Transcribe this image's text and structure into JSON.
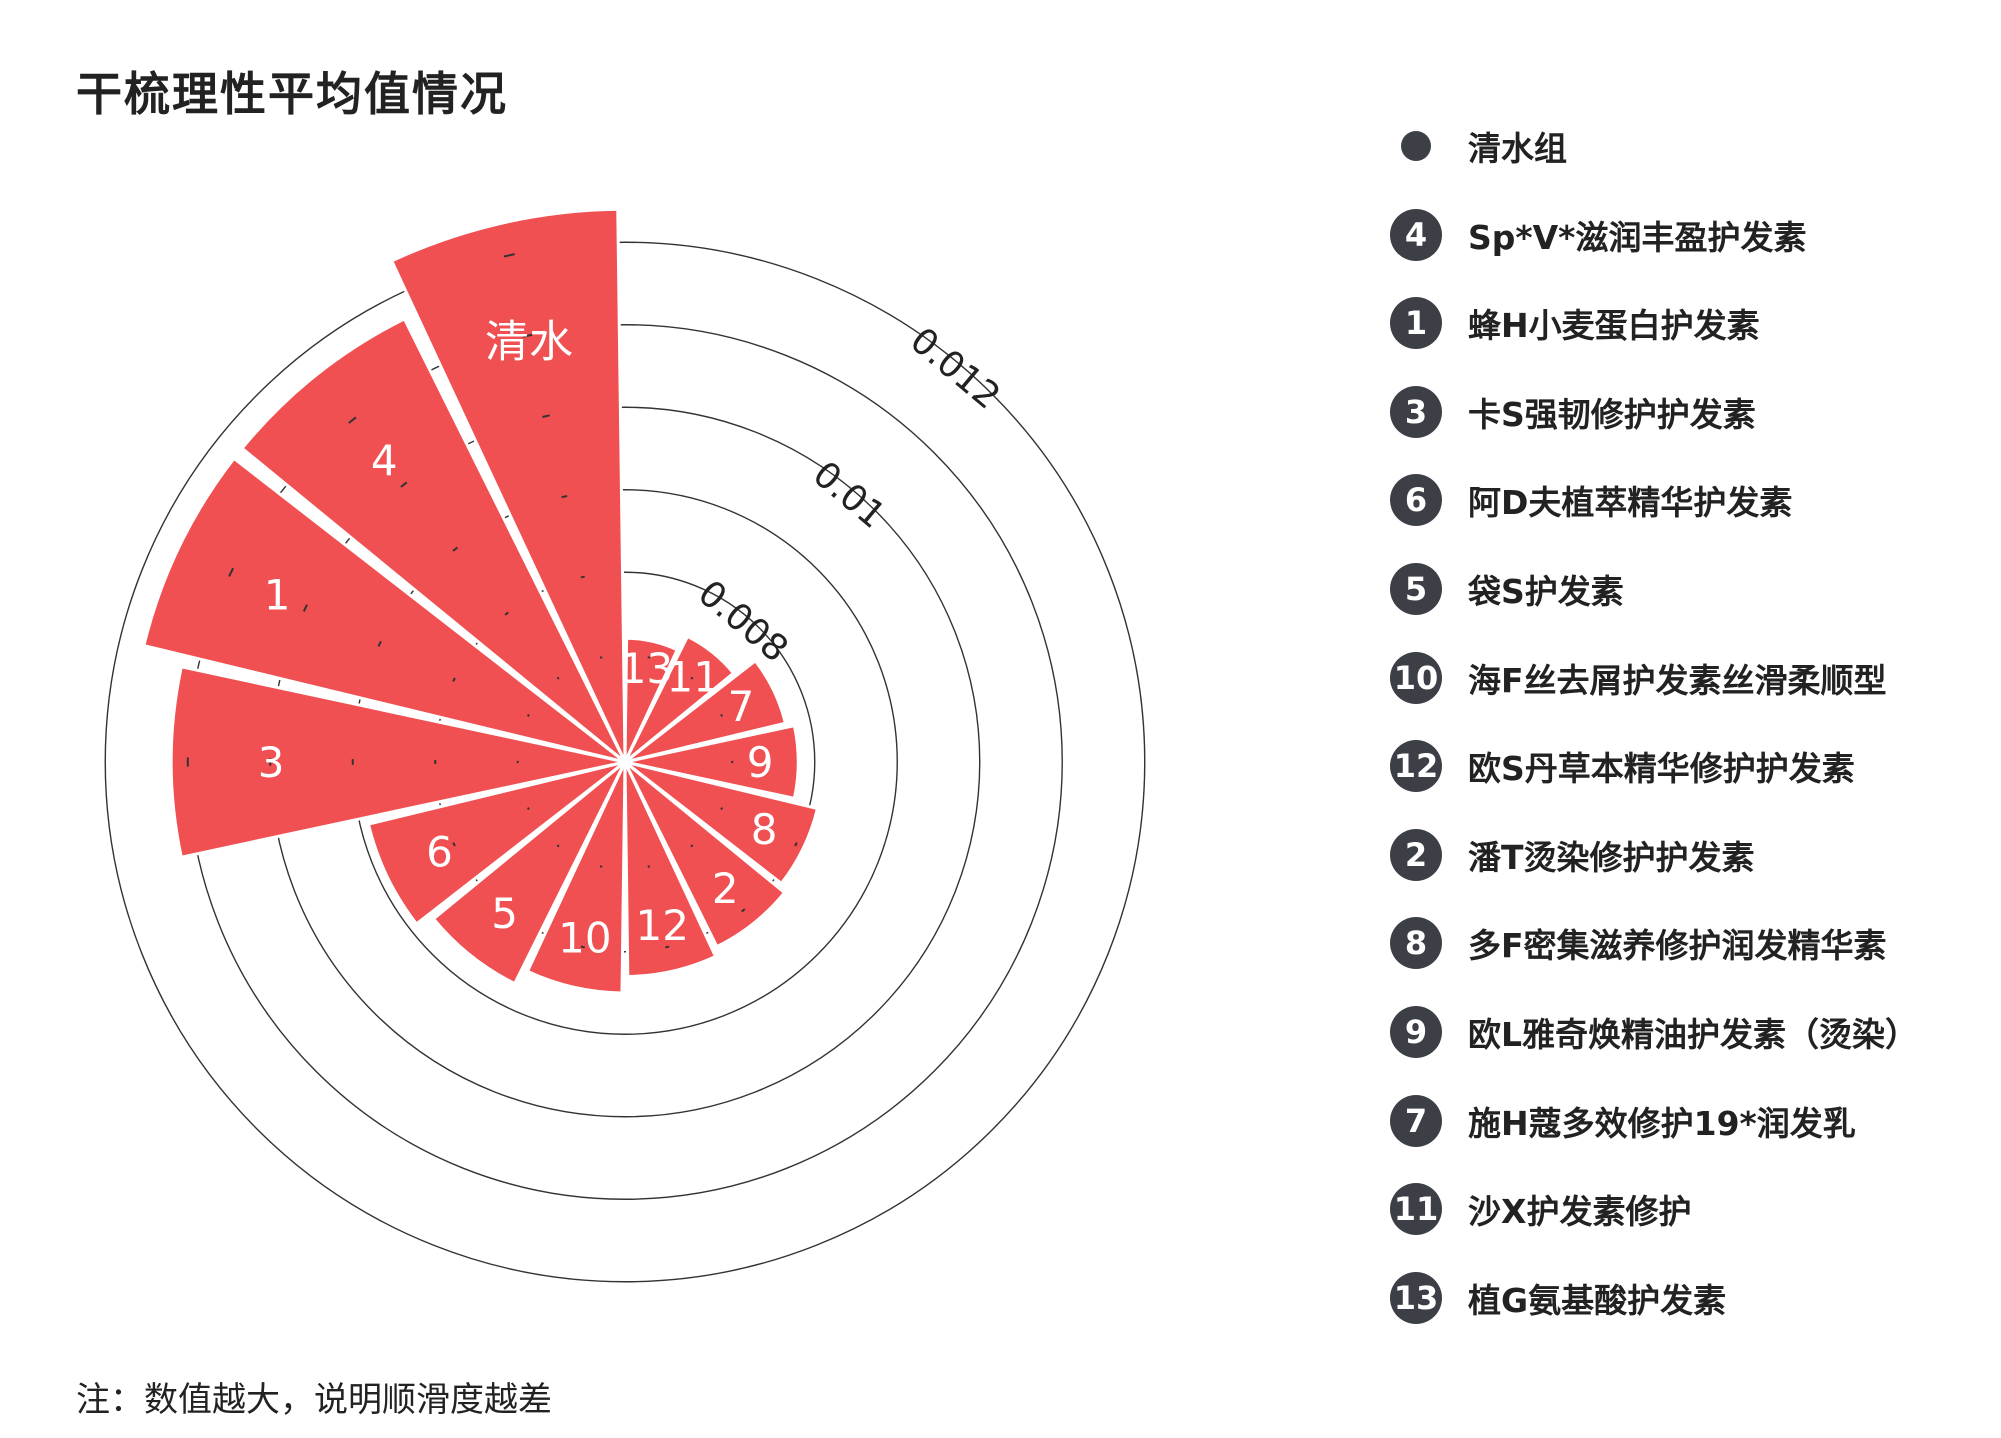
{
  "title": "干梳理性平均值情况",
  "footnote": "注：数值越大，说明顺滑度越差",
  "chart_data": {
    "type": "polar-bar",
    "title": "干梳理性平均值情况",
    "radial_ticks": [
      "0.008",
      "0.01",
      "0.012"
    ],
    "radial_tick_values": [
      0.008,
      0.01,
      0.012
    ],
    "bar_color": "#f05052",
    "categories": [
      "清水",
      "4",
      "1",
      "3",
      "6",
      "5",
      "10",
      "12",
      "2",
      "8",
      "9",
      "7",
      "11",
      "13"
    ],
    "values": [
      0.0124,
      0.0117,
      0.0117,
      0.0112,
      0.0089,
      0.0087,
      0.0085,
      0.0083,
      0.0082,
      0.0081,
      0.0078,
      0.0077,
      0.0074,
      0.0072
    ],
    "legend": [
      {
        "marker": "",
        "label": "清水组"
      },
      {
        "marker": "4",
        "label": "Sp*V*滋润丰盈护发素"
      },
      {
        "marker": "1",
        "label": "蜂H小麦蛋白护发素"
      },
      {
        "marker": "3",
        "label": "卡S强韧修护护发素"
      },
      {
        "marker": "6",
        "label": "阿D夫植萃精华护发素"
      },
      {
        "marker": "5",
        "label": "袋S护发素"
      },
      {
        "marker": "10",
        "label": "海F丝去屑护发素丝滑柔顺型"
      },
      {
        "marker": "12",
        "label": "欧S丹草本精华修护护发素"
      },
      {
        "marker": "2",
        "label": "潘T烫染修护护发素"
      },
      {
        "marker": "8",
        "label": "多F密集滋养修护润发精华素"
      },
      {
        "marker": "9",
        "label": "欧L雅奇焕精油护发素（烫染）"
      },
      {
        "marker": "7",
        "label": "施H蔻多效修护19*润发乳"
      },
      {
        "marker": "11",
        "label": "沙X护发素修护"
      },
      {
        "marker": "13",
        "label": "植G氨基酸护发素"
      }
    ]
  }
}
